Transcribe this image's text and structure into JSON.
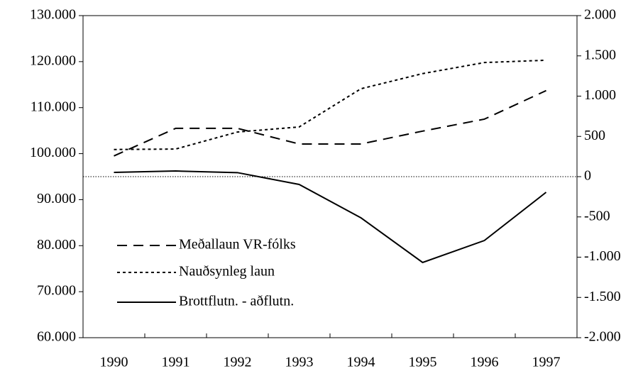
{
  "chart_data": {
    "type": "line",
    "categories": [
      "1990",
      "1991",
      "1992",
      "1993",
      "1994",
      "1995",
      "1996",
      "1997"
    ],
    "series": [
      {
        "name": "Meðallaun VR-fólks",
        "color": "#000000",
        "line_style": "dashed",
        "axis": "y",
        "values": [
          99500,
          105500,
          105500,
          102100,
          102100,
          104900,
          107500,
          113700
        ]
      },
      {
        "name": "Nauðsynleg laun",
        "color": "#000000",
        "line_style": "dotted",
        "axis": "y",
        "values": [
          100900,
          101000,
          104700,
          105800,
          114100,
          117400,
          119800,
          120300
        ]
      },
      {
        "name": "Brottflutn. - aðflutn.",
        "color": "#000000",
        "line_style": "solid",
        "axis": "y2",
        "values": [
          53,
          70,
          50,
          -97,
          -511,
          -1066,
          -793,
          -194
        ]
      }
    ],
    "ylim": [
      60000,
      130000
    ],
    "yticks": [
      {
        "value": 60000,
        "label": "60.000"
      },
      {
        "value": 70000,
        "label": "70.000"
      },
      {
        "value": 80000,
        "label": "80.000"
      },
      {
        "value": 90000,
        "label": "90.000"
      },
      {
        "value": 100000,
        "label": "100.000"
      },
      {
        "value": 110000,
        "label": "110.000"
      },
      {
        "value": 120000,
        "label": "120.000"
      },
      {
        "value": 130000,
        "label": "130.000"
      }
    ],
    "y2lim": [
      -2000,
      2000
    ],
    "y2ticks": [
      {
        "value": -2000,
        "label": "-2.000"
      },
      {
        "value": -1500,
        "label": "-1.500"
      },
      {
        "value": -1000,
        "label": "-1.000"
      },
      -500,
      0,
      500,
      {
        "value": 1000,
        "label": "1.000"
      },
      {
        "value": 1500,
        "label": "1.500"
      },
      {
        "value": 2000,
        "label": "2.000"
      }
    ],
    "y2_zero_line": true,
    "legend": "lower left"
  }
}
